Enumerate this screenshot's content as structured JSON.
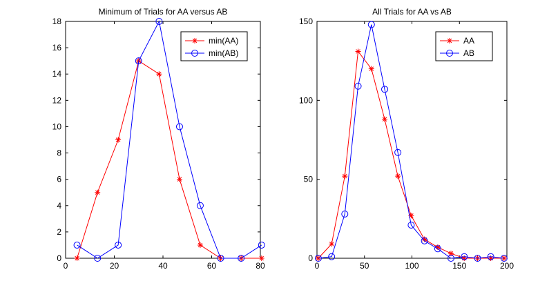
{
  "chart_data": [
    {
      "type": "line",
      "title": "Minimum of Trials for AA versus AB",
      "xlabel": "",
      "ylabel": "",
      "xlim": [
        0,
        80
      ],
      "ylim": [
        0,
        18
      ],
      "xticks": [
        "0",
        "20",
        "40",
        "60",
        "80"
      ],
      "yticks": [
        "0",
        "2",
        "4",
        "6",
        "8",
        "10",
        "12",
        "14",
        "16",
        "18"
      ],
      "legend": "top-right",
      "series": [
        {
          "name": "min(AA)",
          "color": "#ff0000",
          "marker": "asterisk",
          "x": [
            4.7,
            13.1,
            21.6,
            30.0,
            38.4,
            46.8,
            55.3,
            63.7,
            72.1,
            80.5
          ],
          "y": [
            0,
            5,
            9,
            15,
            14,
            6,
            1,
            0,
            0,
            0
          ]
        },
        {
          "name": "min(AB)",
          "color": "#0000ff",
          "marker": "circle",
          "x": [
            4.7,
            13.1,
            21.6,
            30.0,
            38.4,
            46.8,
            55.3,
            63.7,
            72.1,
            80.5
          ],
          "y": [
            1,
            0,
            1,
            15,
            18,
            10,
            4,
            0,
            0,
            1
          ]
        }
      ]
    },
    {
      "type": "line",
      "title": "All Trials for AA vs AB",
      "xlabel": "",
      "ylabel": "",
      "xlim": [
        0,
        200
      ],
      "ylim": [
        0,
        150
      ],
      "xticks": [
        "0",
        "50",
        "100",
        "150",
        "200"
      ],
      "yticks": [
        "0",
        "50",
        "100",
        "150"
      ],
      "legend": "top-right",
      "series": [
        {
          "name": "AA",
          "color": "#ff0000",
          "marker": "asterisk",
          "x": [
            1.4,
            15.4,
            29.3,
            43.3,
            57.3,
            71.3,
            85.2,
            99.2,
            113.2,
            127.2,
            141.1,
            155.1,
            169.1,
            183.0,
            197.0
          ],
          "y": [
            0,
            9,
            52,
            131,
            120,
            88,
            52,
            27,
            12,
            7,
            3,
            0,
            0,
            0,
            0
          ]
        },
        {
          "name": "AB",
          "color": "#0000ff",
          "marker": "circle",
          "x": [
            1.4,
            15.4,
            29.3,
            43.3,
            57.3,
            71.3,
            85.2,
            99.2,
            113.2,
            127.2,
            141.1,
            155.1,
            169.1,
            183.0,
            197.0
          ],
          "y": [
            0,
            1,
            28,
            109,
            148,
            107,
            67,
            21,
            11,
            6,
            0,
            1,
            0,
            1,
            0
          ]
        }
      ]
    }
  ]
}
